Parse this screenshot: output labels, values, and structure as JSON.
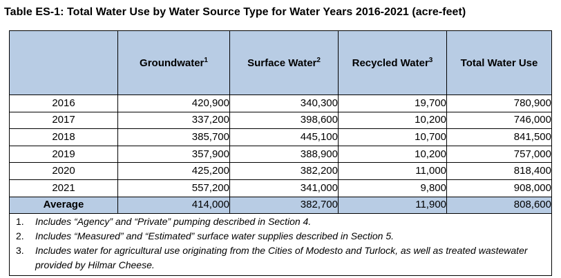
{
  "title": "Table ES-1:  Total Water Use by Water Source Type for Water Years 2016-2021 (acre-feet)",
  "columns": [
    {
      "label": "",
      "sup": ""
    },
    {
      "label": "Groundwater",
      "sup": "1"
    },
    {
      "label": "Surface Water",
      "sup": "2"
    },
    {
      "label": "Recycled Water",
      "sup": "3"
    },
    {
      "label": "Total Water Use",
      "sup": ""
    }
  ],
  "rows": [
    {
      "year": "2016",
      "groundwater": "420,900",
      "surface": "340,300",
      "recycled": "19,700",
      "total": "780,900"
    },
    {
      "year": "2017",
      "groundwater": "337,200",
      "surface": "398,600",
      "recycled": "10,200",
      "total": "746,000"
    },
    {
      "year": "2018",
      "groundwater": "385,700",
      "surface": "445,100",
      "recycled": "10,700",
      "total": "841,500"
    },
    {
      "year": "2019",
      "groundwater": "357,900",
      "surface": "388,900",
      "recycled": "10,200",
      "total": "757,000"
    },
    {
      "year": "2020",
      "groundwater": "425,200",
      "surface": "382,200",
      "recycled": "11,000",
      "total": "818,400"
    },
    {
      "year": "2021",
      "groundwater": "557,200",
      "surface": "341,000",
      "recycled": "9,800",
      "total": "908,000"
    }
  ],
  "average": {
    "label": "Average",
    "groundwater": "414,000",
    "surface": "382,700",
    "recycled": "11,900",
    "total": "808,600"
  },
  "notes": [
    {
      "num": "1.",
      "text": "Includes “Agency” and “Private” pumping described in Section 4."
    },
    {
      "num": "2.",
      "text": "Includes “Measured” and “Estimated” surface water supplies described in Section 5."
    },
    {
      "num": "3.",
      "text": "Includes water for agricultural use originating from the Cities of Modesto and Turlock, as well as treated wastewater provided by Hilmar Cheese."
    }
  ],
  "colors": {
    "header_bg": "#b8cce4",
    "border": "#000000"
  }
}
